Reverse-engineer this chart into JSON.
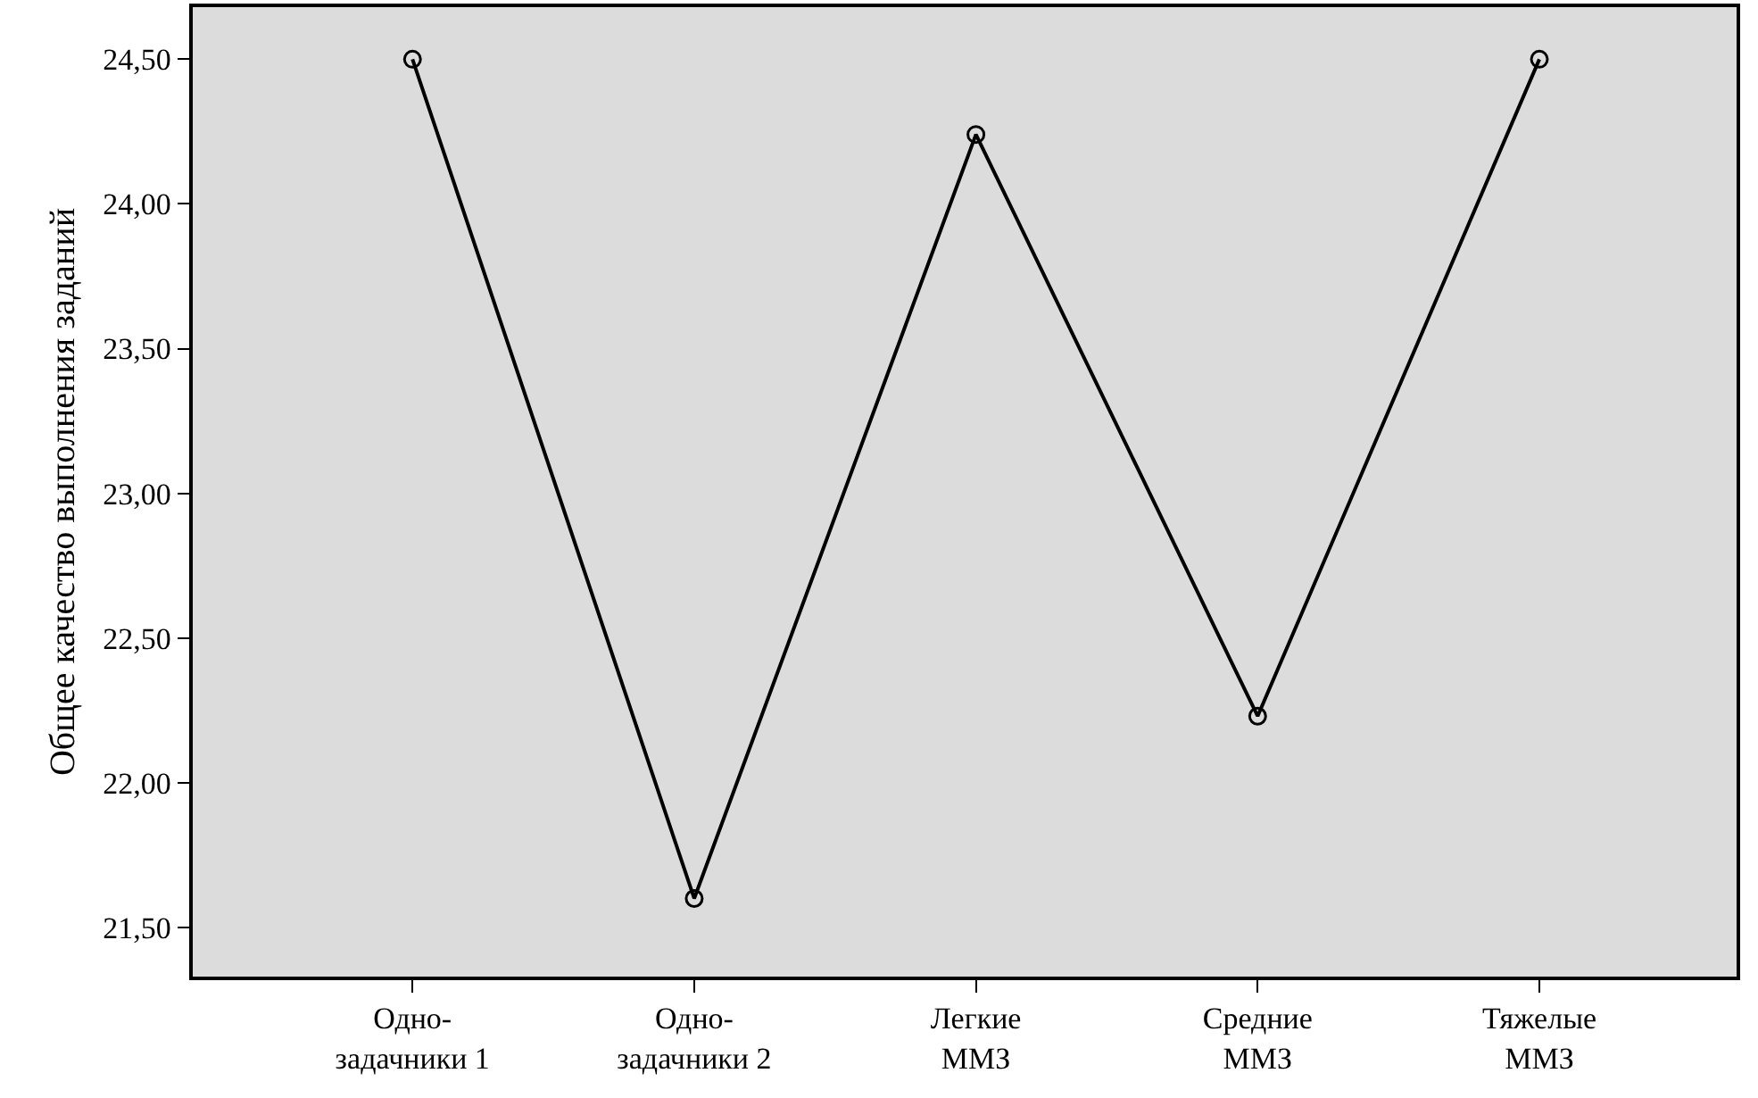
{
  "chart_data": {
    "type": "line",
    "ylabel": "Общее качество выполнения заданий",
    "categories": [
      "Одно-\nзадачники 1",
      "Одно-\nзадачники 2",
      "Легкие\nММЗ",
      "Средние\nММЗ",
      "Тяжелые\nММЗ"
    ],
    "series": [
      {
        "color": "#000000",
        "values": [
          24.5,
          21.6,
          24.24,
          22.23,
          24.5
        ]
      }
    ],
    "ylim": [
      21.33,
      24.68
    ],
    "yticks": [
      {
        "value": 21.5,
        "label": "21,50"
      },
      {
        "value": 22.0,
        "label": "22,00"
      },
      {
        "value": 22.5,
        "label": "22,50"
      },
      {
        "value": 23.0,
        "label": "23,00"
      },
      {
        "value": 23.5,
        "label": "23,50"
      },
      {
        "value": 24.0,
        "label": "24,00"
      },
      {
        "value": 24.5,
        "label": "24,50"
      }
    ],
    "marker": "circle",
    "line_style": "solid",
    "grid": false,
    "legend": false
  }
}
